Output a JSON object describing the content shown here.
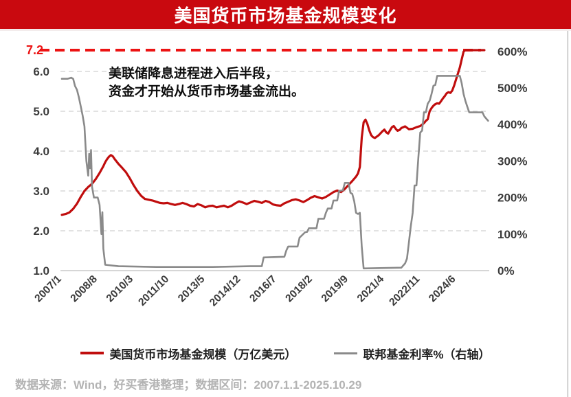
{
  "banner": {
    "title": "美国货币市场基金规模变化",
    "background_color": "#c9090f",
    "text_color": "#ffffff"
  },
  "annotation": {
    "line1": "美联储降息进程进入后半段，",
    "line2": "资金才开始从货币市场基金流出。"
  },
  "legend": {
    "items": [
      {
        "label": "美国货币市场基金规模（万亿美元）",
        "color": "#c00d0d"
      },
      {
        "label": "联邦基金利率%（右轴）",
        "color": "#8a8a8a"
      }
    ]
  },
  "source": {
    "text": "数据来源：Wind，好买香港整理；数据区间：2007.1.1-2025.10.29"
  },
  "chart_data": {
    "type": "line",
    "title": "美国货币市场基金规模变化",
    "x": {
      "unit": "month index from 2007/1",
      "start_label": "2007/1",
      "end_label": "2025/10",
      "total_months": 226,
      "tick_labels": [
        "2007/1",
        "2008/8",
        "2010/3",
        "2011/10",
        "2013/5",
        "2014/12",
        "2016/7",
        "2018/2",
        "2019/9",
        "2021/4",
        "2022/11",
        "2024/6"
      ],
      "tick_month_indices": [
        0,
        19,
        38,
        57,
        76,
        95,
        114,
        133,
        152,
        171,
        190,
        209
      ]
    },
    "y_left": {
      "tick_labels": [
        "1.0",
        "2.0",
        "3.0",
        "4.0",
        "5.0",
        "6.0"
      ],
      "tick_values": [
        1,
        2,
        3,
        4,
        5,
        6
      ],
      "range": [
        1.0,
        6.55
      ],
      "grid": "dashed horizontal at 2.0-6.0, solid baseline at 1.0"
    },
    "y_right": {
      "tick_labels": [
        "0%",
        "100%",
        "200%",
        "300%",
        "400%",
        "500%",
        "600%"
      ],
      "tick_values": [
        0,
        100,
        200,
        300,
        400,
        500,
        600
      ],
      "note": "axis ticks display rate x100; series values below are natural percent"
    },
    "annotation_line": {
      "label": "7.2",
      "value": 7.2,
      "style": "dashed",
      "color": "#ec1313",
      "position": "top of plot"
    },
    "legend_position": "bottom center",
    "series": [
      {
        "name": "美国货币市场基金规模（万亿美元）",
        "axis": "left",
        "color": "#c00d0d",
        "points": [
          [
            0,
            2.4
          ],
          [
            2,
            2.42
          ],
          [
            4,
            2.46
          ],
          [
            6,
            2.55
          ],
          [
            8,
            2.68
          ],
          [
            10,
            2.85
          ],
          [
            12,
            3.0
          ],
          [
            14,
            3.1
          ],
          [
            16,
            3.18
          ],
          [
            18,
            3.3
          ],
          [
            20,
            3.45
          ],
          [
            22,
            3.62
          ],
          [
            23,
            3.72
          ],
          [
            24,
            3.8
          ],
          [
            25,
            3.86
          ],
          [
            26,
            3.9
          ],
          [
            27,
            3.87
          ],
          [
            28,
            3.8
          ],
          [
            30,
            3.68
          ],
          [
            32,
            3.58
          ],
          [
            34,
            3.47
          ],
          [
            36,
            3.32
          ],
          [
            38,
            3.15
          ],
          [
            40,
            3.0
          ],
          [
            42,
            2.88
          ],
          [
            44,
            2.8
          ],
          [
            46,
            2.78
          ],
          [
            48,
            2.76
          ],
          [
            50,
            2.73
          ],
          [
            52,
            2.7
          ],
          [
            54,
            2.69
          ],
          [
            56,
            2.7
          ],
          [
            58,
            2.67
          ],
          [
            60,
            2.65
          ],
          [
            62,
            2.67
          ],
          [
            64,
            2.7
          ],
          [
            66,
            2.67
          ],
          [
            68,
            2.63
          ],
          [
            70,
            2.61
          ],
          [
            72,
            2.67
          ],
          [
            74,
            2.64
          ],
          [
            76,
            2.59
          ],
          [
            78,
            2.62
          ],
          [
            80,
            2.63
          ],
          [
            82,
            2.59
          ],
          [
            84,
            2.61
          ],
          [
            86,
            2.63
          ],
          [
            88,
            2.59
          ],
          [
            90,
            2.63
          ],
          [
            92,
            2.69
          ],
          [
            94,
            2.74
          ],
          [
            96,
            2.71
          ],
          [
            98,
            2.67
          ],
          [
            100,
            2.71
          ],
          [
            102,
            2.75
          ],
          [
            104,
            2.73
          ],
          [
            106,
            2.7
          ],
          [
            108,
            2.75
          ],
          [
            110,
            2.72
          ],
          [
            112,
            2.66
          ],
          [
            114,
            2.64
          ],
          [
            116,
            2.63
          ],
          [
            118,
            2.69
          ],
          [
            120,
            2.73
          ],
          [
            122,
            2.77
          ],
          [
            124,
            2.79
          ],
          [
            126,
            2.76
          ],
          [
            128,
            2.72
          ],
          [
            130,
            2.77
          ],
          [
            132,
            2.83
          ],
          [
            134,
            2.87
          ],
          [
            136,
            2.84
          ],
          [
            138,
            2.81
          ],
          [
            140,
            2.85
          ],
          [
            142,
            2.91
          ],
          [
            144,
            2.97
          ],
          [
            146,
            3.01
          ],
          [
            148,
            2.97
          ],
          [
            150,
            3.05
          ],
          [
            152,
            3.15
          ],
          [
            154,
            3.25
          ],
          [
            156,
            3.36
          ],
          [
            157,
            3.44
          ],
          [
            158,
            3.6
          ],
          [
            159,
            4.35
          ],
          [
            160,
            4.72
          ],
          [
            161,
            4.79
          ],
          [
            162,
            4.68
          ],
          [
            163,
            4.52
          ],
          [
            164,
            4.4
          ],
          [
            165,
            4.35
          ],
          [
            166,
            4.33
          ],
          [
            168,
            4.4
          ],
          [
            170,
            4.5
          ],
          [
            171,
            4.54
          ],
          [
            172,
            4.47
          ],
          [
            173,
            4.44
          ],
          [
            174,
            4.52
          ],
          [
            175,
            4.6
          ],
          [
            176,
            4.63
          ],
          [
            177,
            4.56
          ],
          [
            178,
            4.51
          ],
          [
            179,
            4.53
          ],
          [
            180,
            4.58
          ],
          [
            182,
            4.62
          ],
          [
            184,
            4.55
          ],
          [
            186,
            4.56
          ],
          [
            188,
            4.6
          ],
          [
            190,
            4.63
          ],
          [
            192,
            4.7
          ],
          [
            193,
            4.76
          ],
          [
            194,
            4.8
          ],
          [
            195,
            5.0
          ],
          [
            196,
            5.08
          ],
          [
            197,
            5.14
          ],
          [
            198,
            5.18
          ],
          [
            199,
            5.2
          ],
          [
            200,
            5.19
          ],
          [
            201,
            5.25
          ],
          [
            202,
            5.32
          ],
          [
            203,
            5.38
          ],
          [
            204,
            5.45
          ],
          [
            205,
            5.48
          ],
          [
            206,
            5.46
          ],
          [
            207,
            5.52
          ],
          [
            208,
            5.65
          ],
          [
            209,
            5.8
          ],
          [
            210,
            5.95
          ],
          [
            211,
            6.1
          ],
          [
            212,
            6.3
          ],
          [
            213,
            6.5
          ],
          [
            214,
            6.68
          ],
          [
            215,
            6.85
          ],
          [
            216,
            7.0
          ],
          [
            218,
            7.1
          ],
          [
            220,
            7.15
          ],
          [
            222,
            7.18
          ],
          [
            224,
            7.2
          ]
        ]
      },
      {
        "name": "联邦基金利率%（右轴）",
        "axis": "right",
        "color": "#8a8a8a",
        "points": [
          [
            0,
            5.25
          ],
          [
            3,
            5.25
          ],
          [
            5,
            5.28
          ],
          [
            6,
            5.25
          ],
          [
            7,
            5.05
          ],
          [
            8,
            4.95
          ],
          [
            9,
            4.75
          ],
          [
            10,
            4.5
          ],
          [
            11,
            4.25
          ],
          [
            12,
            3.95
          ],
          [
            13,
            3.0
          ],
          [
            14,
            2.6
          ],
          [
            14.5,
            3.2
          ],
          [
            15,
            2.8
          ],
          [
            15.5,
            3.3
          ],
          [
            16,
            2.3
          ],
          [
            17,
            2.0
          ],
          [
            19,
            2.0
          ],
          [
            20,
            1.8
          ],
          [
            21,
            1.0
          ],
          [
            21.5,
            1.6
          ],
          [
            22,
            0.6
          ],
          [
            23,
            0.16
          ],
          [
            30,
            0.12
          ],
          [
            50,
            0.1
          ],
          [
            80,
            0.1
          ],
          [
            100,
            0.12
          ],
          [
            106,
            0.12
          ],
          [
            107,
            0.36
          ],
          [
            118,
            0.38
          ],
          [
            119,
            0.55
          ],
          [
            120,
            0.66
          ],
          [
            125,
            0.66
          ],
          [
            126,
            0.9
          ],
          [
            129,
            1.05
          ],
          [
            130,
            1.06
          ],
          [
            131,
            1.16
          ],
          [
            135,
            1.16
          ],
          [
            136,
            1.42
          ],
          [
            139,
            1.42
          ],
          [
            140,
            1.58
          ],
          [
            141,
            1.7
          ],
          [
            143,
            1.7
          ],
          [
            144,
            1.92
          ],
          [
            146,
            1.92
          ],
          [
            147,
            2.18
          ],
          [
            149,
            2.2
          ],
          [
            150,
            2.4
          ],
          [
            152,
            2.4
          ],
          [
            153,
            2.13
          ],
          [
            154,
            2.1
          ],
          [
            155,
            1.9
          ],
          [
            156,
            1.58
          ],
          [
            157,
            1.55
          ],
          [
            158,
            1.58
          ],
          [
            159,
            0.65
          ],
          [
            160,
            0.06
          ],
          [
            180,
            0.08
          ],
          [
            182,
            0.2
          ],
          [
            183,
            0.33
          ],
          [
            184,
            0.77
          ],
          [
            185,
            1.21
          ],
          [
            186,
            1.58
          ],
          [
            187,
            2.33
          ],
          [
            188,
            2.33
          ],
          [
            189,
            3.08
          ],
          [
            190,
            3.78
          ],
          [
            191,
            3.83
          ],
          [
            192,
            4.33
          ],
          [
            193,
            4.33
          ],
          [
            194,
            4.57
          ],
          [
            195,
            4.65
          ],
          [
            196,
            4.83
          ],
          [
            197,
            5.06
          ],
          [
            198,
            5.08
          ],
          [
            199,
            5.33
          ],
          [
            211,
            5.33
          ],
          [
            212,
            5.13
          ],
          [
            213,
            4.83
          ],
          [
            214,
            4.64
          ],
          [
            215,
            4.48
          ],
          [
            216,
            4.33
          ],
          [
            223,
            4.33
          ],
          [
            224,
            4.22
          ],
          [
            226,
            4.1
          ]
        ]
      }
    ]
  }
}
